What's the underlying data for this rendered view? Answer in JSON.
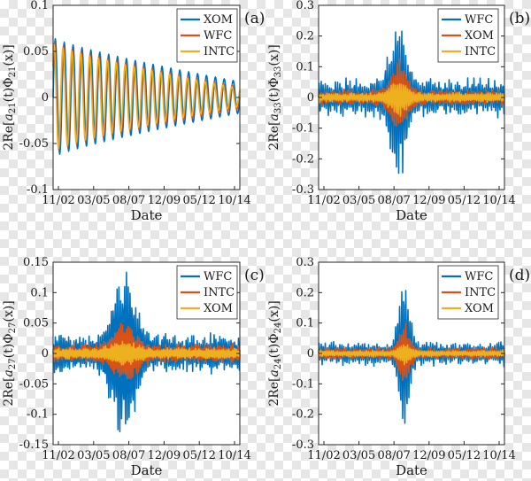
{
  "chart_data": [
    {
      "type": "line",
      "panel_label": "(a)",
      "ylabel": "2Re[a21(t)Φ21(x)]",
      "ylabel_parts": {
        "pre": "2Re[",
        "a": "a",
        "a_sub": "21",
        "mid": "(t)Φ",
        "phi_sub": "21",
        "post": "(x)]"
      },
      "xlabel": "Date",
      "ylim": [
        -0.1,
        0.1
      ],
      "yticks": [
        -0.1,
        -0.05,
        0,
        0.05,
        0.1
      ],
      "ytick_labels": [
        "-0.1",
        "-0.05",
        "0",
        "0.05",
        "0.1"
      ],
      "xtick_labels": [
        "11/02",
        "03/05",
        "08/07",
        "12/09",
        "05/12",
        "10/14"
      ],
      "legend": [
        "XOM",
        "WFC",
        "INTC"
      ],
      "series": [
        {
          "name": "XOM",
          "color": "#0072BD",
          "amp_start": 0.065,
          "amp_end": 0.017,
          "cycles": 21,
          "phase": 0.0
        },
        {
          "name": "WFC",
          "color": "#D95319",
          "amp_start": 0.06,
          "amp_end": 0.012,
          "cycles": 21,
          "phase": 0.6
        },
        {
          "name": "INTC",
          "color": "#EDB120",
          "amp_start": 0.058,
          "amp_end": 0.01,
          "cycles": 21,
          "phase": 0.9
        }
      ]
    },
    {
      "type": "line",
      "panel_label": "(b)",
      "ylabel": "2Re[a33(t)Φ33(x)]",
      "ylabel_parts": {
        "pre": "2Re[",
        "a": "a",
        "a_sub": "33",
        "mid": "(t)Φ",
        "phi_sub": "33",
        "post": "(x)]"
      },
      "xlabel": "Date",
      "ylim": [
        -0.3,
        0.3
      ],
      "yticks": [
        -0.3,
        -0.2,
        -0.1,
        0,
        0.1,
        0.2,
        0.3
      ],
      "ytick_labels": [
        "-0.3",
        "-0.2",
        "-0.1",
        "0",
        "0.1",
        "0.2",
        "0.3"
      ],
      "xtick_labels": [
        "11/02",
        "03/05",
        "08/07",
        "12/09",
        "05/12",
        "10/14"
      ],
      "legend": [
        "WFC",
        "XOM",
        "INTC"
      ],
      "series": [
        {
          "name": "WFC",
          "color": "#0072BD",
          "base": 0.045,
          "peak": 0.24,
          "center": 0.43,
          "width": 0.06,
          "cycles": 90
        },
        {
          "name": "XOM",
          "color": "#D95319",
          "base": 0.02,
          "peak": 0.11,
          "center": 0.43,
          "width": 0.06,
          "cycles": 90
        },
        {
          "name": "INTC",
          "color": "#EDB120",
          "base": 0.012,
          "peak": 0.055,
          "center": 0.43,
          "width": 0.06,
          "cycles": 90
        }
      ]
    },
    {
      "type": "line",
      "panel_label": "(c)",
      "ylabel": "2Re[a27(t)Φ27(x)]",
      "ylabel_parts": {
        "pre": "2Re[",
        "a": "a",
        "a_sub": "27",
        "mid": "(t)Φ",
        "phi_sub": "27",
        "post": "(x)]"
      },
      "xlabel": "Date",
      "ylim": [
        -0.15,
        0.15
      ],
      "yticks": [
        -0.15,
        -0.1,
        -0.05,
        0,
        0.05,
        0.1,
        0.15
      ],
      "ytick_labels": [
        "-0.15",
        "-0.1",
        "-0.05",
        "0",
        "0.05",
        "0.1",
        "0.15"
      ],
      "xtick_labels": [
        "11/02",
        "03/05",
        "08/07",
        "12/09",
        "05/12",
        "10/14"
      ],
      "legend": [
        "WFC",
        "INTC",
        "XOM"
      ],
      "series": [
        {
          "name": "WFC",
          "color": "#0072BD",
          "base": 0.025,
          "peak": 0.13,
          "center": 0.38,
          "width": 0.08,
          "cycles": 100
        },
        {
          "name": "INTC",
          "color": "#D95319",
          "base": 0.012,
          "peak": 0.05,
          "center": 0.38,
          "width": 0.08,
          "cycles": 100
        },
        {
          "name": "XOM",
          "color": "#EDB120",
          "base": 0.007,
          "peak": 0.02,
          "center": 0.38,
          "width": 0.08,
          "cycles": 100
        }
      ]
    },
    {
      "type": "line",
      "panel_label": "(d)",
      "ylabel": "2Re[a24(t)Φ24(x)]",
      "ylabel_parts": {
        "pre": "2Re[",
        "a": "a",
        "a_sub": "24",
        "mid": "(t)Φ",
        "phi_sub": "24",
        "post": "(x)]"
      },
      "xlabel": "Date",
      "ylim": [
        -0.3,
        0.3
      ],
      "yticks": [
        -0.3,
        -0.2,
        -0.1,
        0,
        0.1,
        0.2,
        0.3
      ],
      "ytick_labels": [
        "-0.3",
        "-0.2",
        "-0.1",
        "0",
        "0.1",
        "0.2",
        "0.3"
      ],
      "xtick_labels": [
        "11/02",
        "03/05",
        "08/07",
        "12/09",
        "05/12",
        "10/14"
      ],
      "legend": [
        "WFC",
        "INTC",
        "XOM"
      ],
      "series": [
        {
          "name": "WFC",
          "color": "#0072BD",
          "base": 0.03,
          "peak": 0.22,
          "center": 0.46,
          "width": 0.04,
          "cycles": 90
        },
        {
          "name": "INTC",
          "color": "#D95319",
          "base": 0.015,
          "peak": 0.09,
          "center": 0.46,
          "width": 0.04,
          "cycles": 90
        },
        {
          "name": "XOM",
          "color": "#EDB120",
          "base": 0.008,
          "peak": 0.035,
          "center": 0.46,
          "width": 0.04,
          "cycles": 90
        }
      ]
    }
  ]
}
